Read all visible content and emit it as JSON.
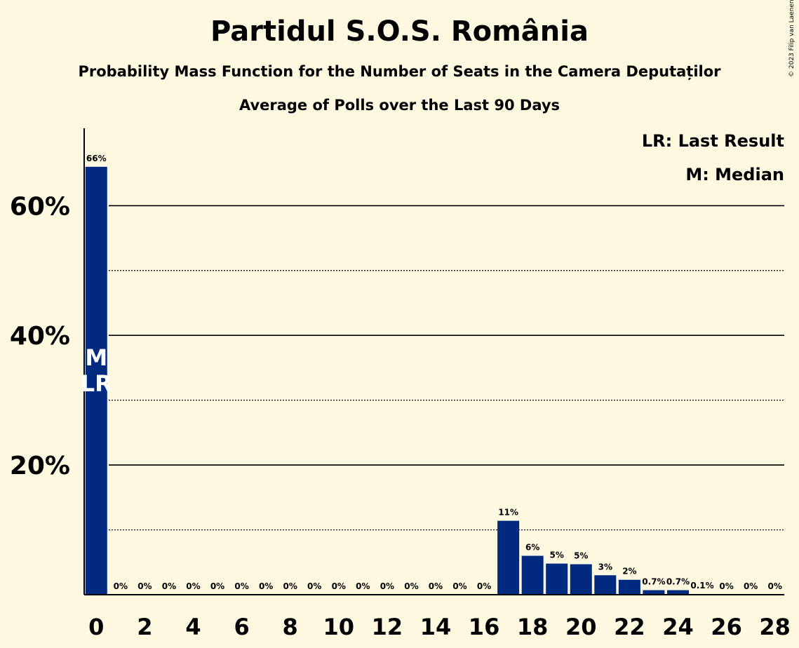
{
  "title": "Partidul S.O.S. România",
  "subtitle": "Probability Mass Function for the Number of Seats in the Camera Deputaților",
  "subtitle2": "Average of Polls over the Last 90 Days",
  "copyright": "© 2023 Filip van Laenen",
  "legend": {
    "last_result": "LR: Last Result",
    "median": "M: Median"
  },
  "colors": {
    "bar": "#002a7f",
    "background": "#fff8e0"
  },
  "chart_data": {
    "type": "bar",
    "x": [
      0,
      1,
      2,
      3,
      4,
      5,
      6,
      7,
      8,
      9,
      10,
      11,
      12,
      13,
      14,
      15,
      16,
      17,
      18,
      19,
      20,
      21,
      22,
      23,
      24,
      25,
      26,
      27,
      28
    ],
    "values": [
      66,
      0,
      0,
      0,
      0,
      0,
      0,
      0,
      0,
      0,
      0,
      0,
      0,
      0,
      0,
      0,
      0,
      11.4,
      6,
      4.8,
      4.7,
      3,
      2.3,
      0.7,
      0.7,
      0.1,
      0,
      0,
      0
    ],
    "labels": [
      "66%",
      "0%",
      "0%",
      "0%",
      "0%",
      "0%",
      "0%",
      "0%",
      "0%",
      "0%",
      "0%",
      "0%",
      "0%",
      "0%",
      "0%",
      "0%",
      "0%",
      "11%",
      "6%",
      "5%",
      "5%",
      "3%",
      "2%",
      "0.7%",
      "0.7%",
      "0.1%",
      "0%",
      "0%",
      "0%"
    ],
    "x_ticks": [
      0,
      2,
      4,
      6,
      8,
      10,
      12,
      14,
      16,
      18,
      20,
      22,
      24,
      26,
      28
    ],
    "y_ticks": [
      {
        "value": 20,
        "label": "20%"
      },
      {
        "value": 40,
        "label": "40%"
      },
      {
        "value": 60,
        "label": "60%"
      }
    ],
    "y_minor_gridlines": [
      10,
      30,
      50
    ],
    "ylim": [
      0,
      72
    ],
    "median_seat": 0,
    "last_result_seat": 0,
    "median_marker": "M",
    "last_result_marker": "LR",
    "grid": true,
    "legend_position": "top-right"
  }
}
